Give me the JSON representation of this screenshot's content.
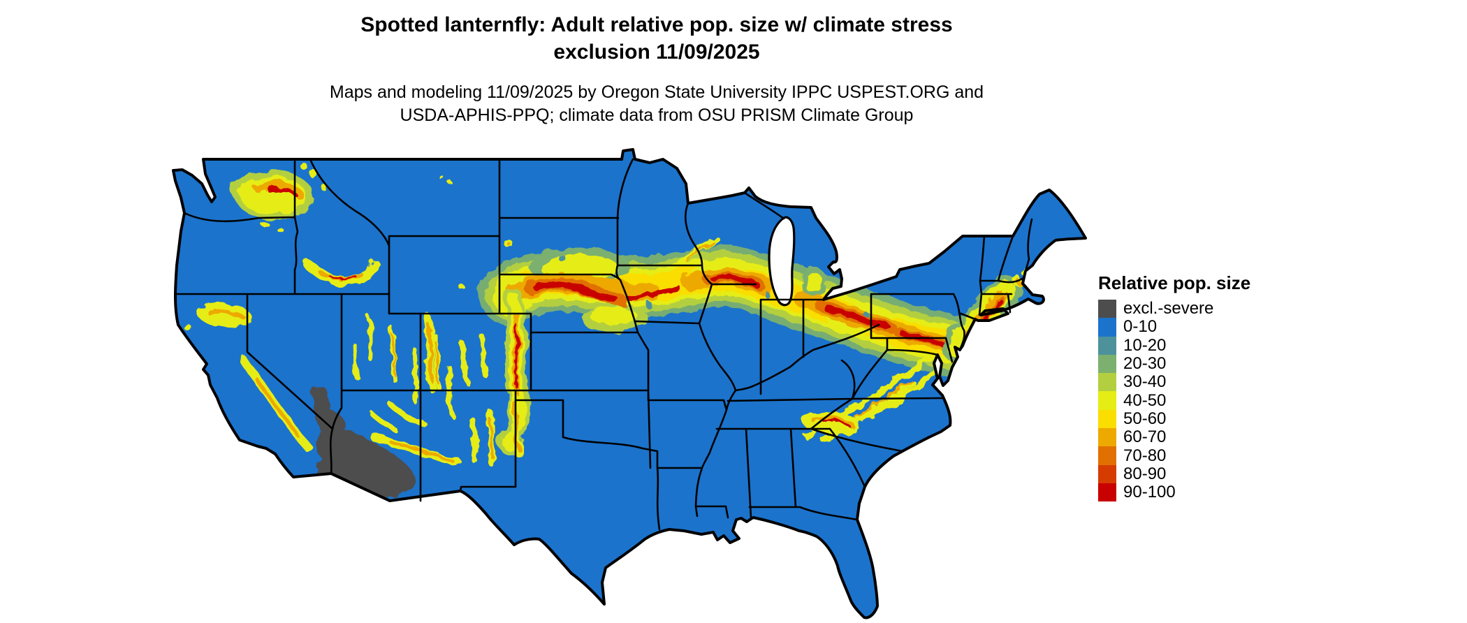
{
  "title": {
    "line1": "Spotted lanternfly: Adult relative pop. size w/ climate stress",
    "line2": "exclusion 11/09/2025"
  },
  "subtitle": {
    "line1": "Maps and modeling 11/09/2025 by Oregon State University IPPC USPEST.ORG and",
    "line2": "USDA-APHIS-PPQ; climate data from OSU PRISM Climate Group"
  },
  "legend": {
    "title": "Relative pop. size",
    "items": [
      {
        "label": "excl.-severe",
        "color": "#4d4d4d"
      },
      {
        "label": "0-10",
        "color": "#1b73cc"
      },
      {
        "label": "10-20",
        "color": "#4d929b"
      },
      {
        "label": "20-30",
        "color": "#7cb06f"
      },
      {
        "label": "30-40",
        "color": "#b3cf40"
      },
      {
        "label": "40-50",
        "color": "#e6ed15"
      },
      {
        "label": "50-60",
        "color": "#f9de00"
      },
      {
        "label": "60-70",
        "color": "#eda900"
      },
      {
        "label": "70-80",
        "color": "#e17000"
      },
      {
        "label": "80-90",
        "color": "#d63c00"
      },
      {
        "label": "90-100",
        "color": "#c80000"
      }
    ]
  },
  "colors": {
    "background": "#ffffff",
    "text": "#000000",
    "map_base": "#1b73cc",
    "state_border": "#000000",
    "water": "#ffffff",
    "excluded": "#4d4d4d",
    "class_0_10": "#1b73cc",
    "class_10_20": "#4d929b",
    "class_20_30": "#7cb06f",
    "class_30_40": "#b3cf40",
    "class_40_50": "#e6ed15",
    "class_50_60": "#f9de00",
    "class_60_70": "#eda900",
    "class_70_80": "#e17000",
    "class_80_90": "#d63c00",
    "class_90_100": "#c80000"
  },
  "map_data": {
    "type": "choropleth_raster_map",
    "region": "Contiguous United States",
    "variable": "Adult relative population size (0-100 classes) with climate stress exclusion",
    "predominant_class": "0-10",
    "excluded_severe_areas": "southern Arizona and southeastern California deserts (lower Colorado River basin)",
    "high_value_corridor": "continuous 40-100 band from eastern Wyoming and Nebraska/South Dakota border across northern Iowa, northern Illinois, Indiana, Ohio, Pennsylvania, ending in the Hudson Valley / Connecticut / Massachusetts area",
    "scattered_moderate_areas": [
      "eastern Washington (Palouse/Spokane)",
      "Snake River Plain, Idaho",
      "southern Oregon / northern California border",
      "Sierra Nevada foothills, California",
      "Great Basin ranges, Nevada",
      "Wasatch Front and plateaus, Utah",
      "Colorado Front Range into New Mexico ranges",
      "Mogollon Rim, Arizona",
      "Appalachian ridges (Tennessee, North Carolina, Virginia, West Virginia, Maryland)",
      "southern New England coast"
    ]
  }
}
